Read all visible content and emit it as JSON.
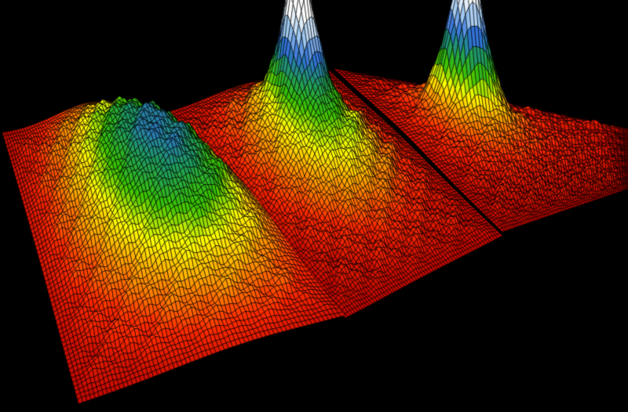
{
  "background": "#000000",
  "mesh_color": "#000000",
  "colormap": [
    "#b00000",
    "#ff2a00",
    "#ff9a00",
    "#ffff00",
    "#39c400",
    "#1f9a60",
    "#2f6fd8",
    "#9fc8f0",
    "#ffffff"
  ],
  "surfaces": [
    {
      "name": "left",
      "peak": "broad"
    },
    {
      "name": "middle",
      "peak": "broad-plus-sharp"
    },
    {
      "name": "right",
      "peak": "sharp"
    }
  ]
}
